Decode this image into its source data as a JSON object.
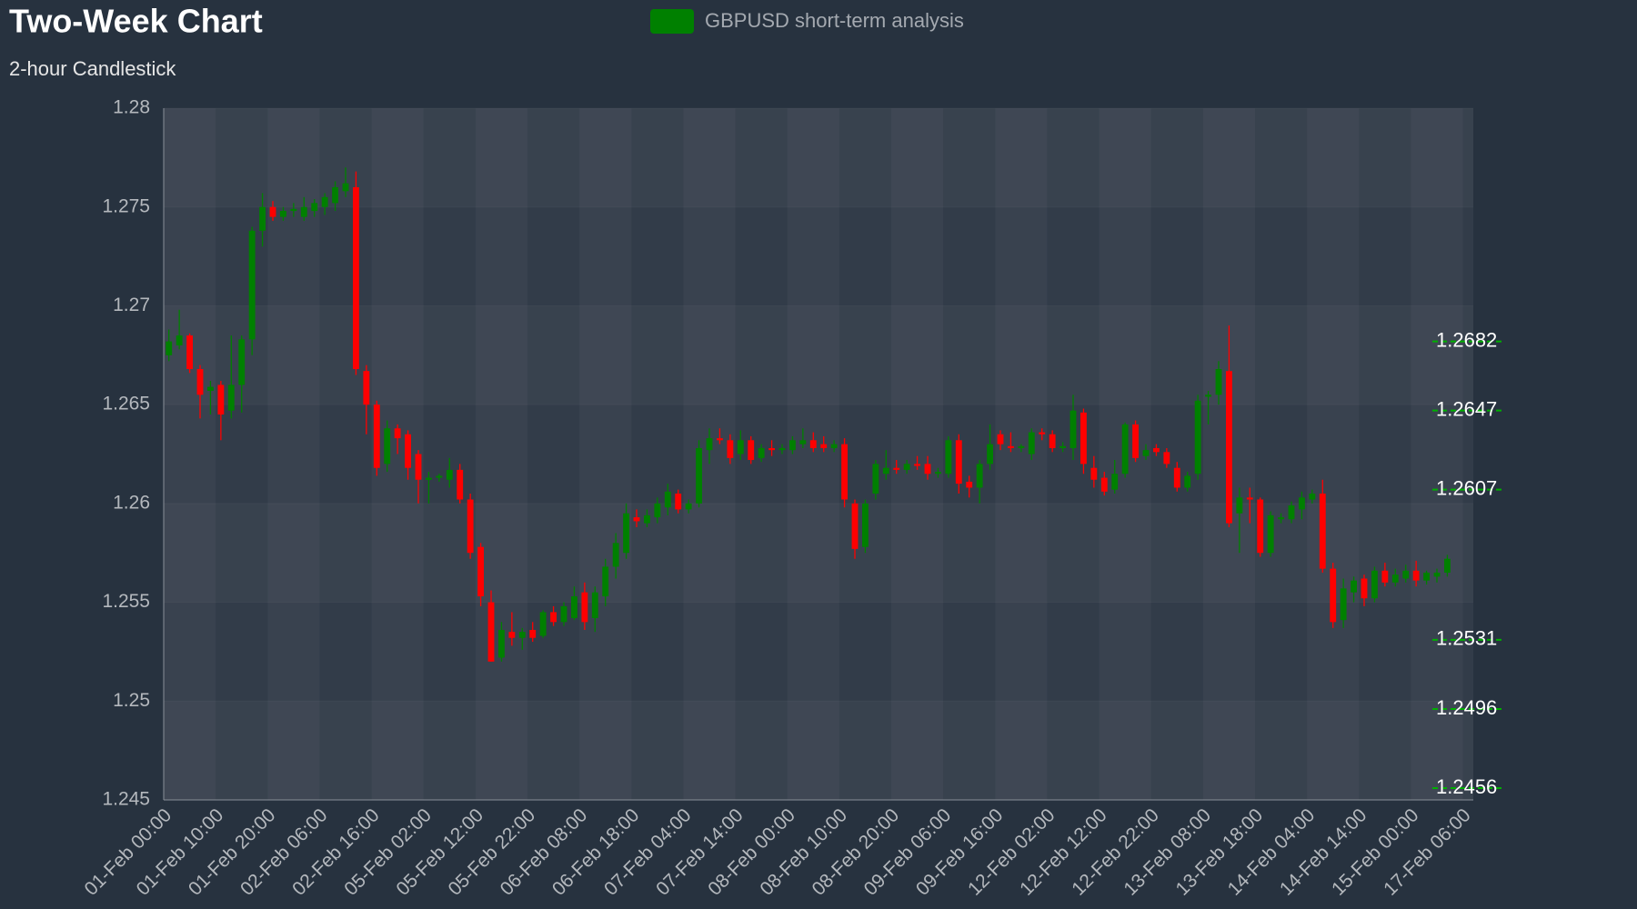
{
  "chart_data": {
    "type": "candlestick",
    "title": "Two-Week Chart",
    "subtitle": "2-hour Candlestick",
    "categories": [
      "01-Feb 00:00",
      null,
      null,
      null,
      null,
      "01-Feb 10:00",
      null,
      null,
      null,
      null,
      "01-Feb 20:00",
      null,
      null,
      null,
      null,
      "02-Feb 06:00",
      null,
      null,
      null,
      null,
      "02-Feb 16:00",
      null,
      null,
      null,
      null,
      "05-Feb 02:00",
      null,
      null,
      null,
      null,
      "05-Feb 12:00",
      null,
      null,
      null,
      null,
      "05-Feb 22:00",
      null,
      null,
      null,
      null,
      "06-Feb 08:00",
      null,
      null,
      null,
      null,
      "06-Feb 18:00",
      null,
      null,
      null,
      null,
      "07-Feb 04:00",
      null,
      null,
      null,
      null,
      "07-Feb 14:00",
      null,
      null,
      null,
      null,
      "08-Feb 00:00",
      null,
      null,
      null,
      null,
      "08-Feb 10:00",
      null,
      null,
      null,
      null,
      "08-Feb 20:00",
      null,
      null,
      null,
      null,
      "09-Feb 06:00",
      null,
      null,
      null,
      null,
      "09-Feb 16:00",
      null,
      null,
      null,
      null,
      "12-Feb 02:00",
      null,
      null,
      null,
      null,
      "12-Feb 12:00",
      null,
      null,
      null,
      null,
      "12-Feb 22:00",
      null,
      null,
      null,
      null,
      "13-Feb 08:00",
      null,
      null,
      null,
      null,
      "13-Feb 18:00",
      null,
      null,
      null,
      null,
      "14-Feb 04:00",
      null,
      null,
      null,
      null,
      "14-Feb 14:00",
      null,
      null,
      null,
      null,
      "15-Feb 00:00",
      null,
      null,
      null,
      null,
      "17-Feb 06:00"
    ],
    "series": [
      {
        "name": "GBPUSD short-term analysis",
        "color": "#008000",
        "down_color": "#ff0000",
        "open": [
          1.2675,
          1.268,
          1.2685,
          1.2668,
          1.2657,
          1.266,
          1.2647,
          1.266,
          1.2683,
          1.2738,
          1.275,
          1.2745,
          1.2748,
          1.2745,
          1.2748,
          1.275,
          1.2752,
          1.2758,
          1.276,
          1.2667,
          1.265,
          1.262,
          1.2638,
          1.2635,
          1.2625,
          1.2612,
          1.2613,
          1.2612,
          1.2617,
          1.2602,
          1.2578,
          1.255,
          1.2522,
          1.2535,
          1.2532,
          1.2536,
          1.2533,
          1.2545,
          1.254,
          1.2542,
          1.2555,
          1.2542,
          1.2553,
          1.2568,
          1.2575,
          1.2593,
          1.259,
          1.2593,
          1.2598,
          1.2605,
          1.2597,
          1.26,
          1.2627,
          1.2633,
          1.2632,
          1.2625,
          1.2632,
          1.2623,
          1.2628,
          1.2627,
          1.2627,
          1.263,
          1.2632,
          1.263,
          1.2628,
          1.263,
          1.26,
          1.2578,
          1.2605,
          1.2615,
          1.2618,
          1.2617,
          1.262,
          1.262,
          1.2615,
          1.2615,
          1.2632,
          1.2611,
          1.2608,
          1.262,
          1.2635,
          1.2629,
          1.2628,
          1.2625,
          1.2636,
          1.2635,
          1.2628,
          1.2628,
          1.2646,
          1.2618,
          1.2613,
          1.2607,
          1.2615,
          1.264,
          1.2624,
          1.2628,
          1.2626,
          1.2618,
          1.2608,
          1.2615,
          1.2654,
          1.2655,
          1.2667,
          1.2595,
          1.2603,
          1.2602,
          1.2575,
          1.2592,
          1.2592,
          1.2597,
          1.2602,
          1.2605,
          1.2567,
          1.2541,
          1.2555,
          1.2562,
          1.2552,
          1.2566,
          1.256,
          1.2562,
          1.2566,
          1.2561,
          1.2563,
          1.2565,
          null,
          null
        ],
        "high": [
          1.2688,
          1.2698,
          1.2686,
          1.267,
          1.2662,
          1.2662,
          1.2685,
          1.2685,
          1.274,
          1.2757,
          1.2753,
          1.275,
          1.2752,
          1.2755,
          1.2754,
          1.2757,
          1.2763,
          1.277,
          1.2768,
          1.267,
          1.2652,
          1.2642,
          1.264,
          1.2637,
          1.2627,
          1.2616,
          1.2615,
          1.2623,
          1.262,
          1.2605,
          1.258,
          1.2556,
          1.254,
          1.2545,
          1.2537,
          1.254,
          1.2546,
          1.2548,
          1.255,
          1.2558,
          1.256,
          1.2558,
          1.2572,
          1.2585,
          1.26,
          1.2597,
          1.2597,
          1.2603,
          1.261,
          1.2607,
          1.2602,
          1.2632,
          1.2638,
          1.2638,
          1.2635,
          1.2637,
          1.2634,
          1.263,
          1.2632,
          1.263,
          1.2634,
          1.2638,
          1.2636,
          1.2634,
          1.2632,
          1.2633,
          1.2602,
          1.2602,
          1.2622,
          1.2627,
          1.2622,
          1.2622,
          1.2624,
          1.2624,
          1.2618,
          1.2634,
          1.2635,
          1.2614,
          1.2622,
          1.264,
          1.2637,
          1.2636,
          1.263,
          1.2638,
          1.2638,
          1.2637,
          1.2631,
          1.2655,
          1.2648,
          1.2624,
          1.2616,
          1.2622,
          1.2641,
          1.2642,
          1.263,
          1.263,
          1.2628,
          1.2621,
          1.2616,
          1.2655,
          1.2657,
          1.2672,
          1.269,
          1.2608,
          1.2608,
          1.2603,
          1.2596,
          1.2595,
          1.2601,
          1.2606,
          1.2607,
          1.2612,
          1.257,
          1.2562,
          1.2563,
          1.2564,
          1.2568,
          1.257,
          1.2567,
          1.2569,
          1.2571,
          1.2566,
          1.2567,
          1.2574,
          null,
          null
        ],
        "low": [
          1.2672,
          1.2678,
          1.2666,
          1.2643,
          1.2645,
          1.2632,
          1.2643,
          1.2646,
          1.2675,
          1.273,
          1.2743,
          1.2743,
          1.2745,
          1.2743,
          1.2745,
          1.2746,
          1.2748,
          1.2755,
          1.2665,
          1.2635,
          1.2614,
          1.2616,
          1.2625,
          1.2612,
          1.26,
          1.26,
          1.2611,
          1.2608,
          1.26,
          1.2572,
          1.2548,
          1.252,
          1.252,
          1.2528,
          1.2526,
          1.253,
          1.2532,
          1.2538,
          1.2538,
          1.2541,
          1.2536,
          1.2535,
          1.2548,
          1.2562,
          1.2572,
          1.2588,
          1.2588,
          1.259,
          1.2594,
          1.2595,
          1.2595,
          1.2598,
          1.262,
          1.263,
          1.262,
          1.2622,
          1.262,
          1.2621,
          1.2624,
          1.2625,
          1.2625,
          1.2628,
          1.2626,
          1.2626,
          1.2626,
          1.2598,
          1.2572,
          1.2575,
          1.2602,
          1.2612,
          1.2615,
          1.2615,
          1.2617,
          1.2612,
          1.2613,
          1.2613,
          1.2605,
          1.2603,
          1.26,
          1.2617,
          1.2627,
          1.2626,
          1.2626,
          1.2622,
          1.2632,
          1.2626,
          1.2626,
          1.2622,
          1.2615,
          1.2608,
          1.2604,
          1.2605,
          1.2613,
          1.2621,
          1.2622,
          1.2624,
          1.2618,
          1.2606,
          1.2606,
          1.2612,
          1.264,
          1.265,
          1.2588,
          1.2575,
          1.259,
          1.2573,
          1.2573,
          1.259,
          1.259,
          1.2592,
          1.26,
          1.2565,
          1.2537,
          1.2537,
          1.255,
          1.2548,
          1.255,
          1.2558,
          1.2558,
          1.256,
          1.2558,
          1.2559,
          1.256,
          1.2563,
          null,
          null
        ],
        "close": [
          1.2682,
          1.2685,
          1.2668,
          1.2655,
          1.2659,
          1.2645,
          1.266,
          1.2683,
          1.2738,
          1.275,
          1.2745,
          1.2748,
          1.2749,
          1.275,
          1.2752,
          1.2755,
          1.276,
          1.2762,
          1.2668,
          1.265,
          1.2618,
          1.2638,
          1.2633,
          1.2618,
          1.2612,
          1.2613,
          1.2614,
          1.2617,
          1.2602,
          1.2575,
          1.2553,
          1.252,
          1.2536,
          1.2532,
          1.2535,
          1.2532,
          1.2545,
          1.254,
          1.2548,
          1.2553,
          1.254,
          1.2555,
          1.2568,
          1.258,
          1.2595,
          1.2591,
          1.2594,
          1.26,
          1.2606,
          1.2597,
          1.26,
          1.2628,
          1.2633,
          1.2632,
          1.2623,
          1.2632,
          1.2622,
          1.2628,
          1.2627,
          1.2628,
          1.2632,
          1.2632,
          1.2628,
          1.2628,
          1.263,
          1.2602,
          1.2577,
          1.26,
          1.262,
          1.2618,
          1.2617,
          1.262,
          1.2619,
          1.2615,
          1.2616,
          1.2632,
          1.261,
          1.2608,
          1.262,
          1.263,
          1.263,
          1.2628,
          1.2629,
          1.2636,
          1.2635,
          1.2628,
          1.2629,
          1.2647,
          1.262,
          1.2612,
          1.2606,
          1.2615,
          1.264,
          1.2623,
          1.2627,
          1.2626,
          1.262,
          1.2608,
          1.2614,
          1.2652,
          1.2655,
          1.2668,
          1.259,
          1.2603,
          1.2602,
          1.2575,
          1.2594,
          1.2593,
          1.2599,
          1.2603,
          1.2605,
          1.2567,
          1.254,
          1.2557,
          1.2561,
          1.2552,
          1.2566,
          1.256,
          1.2564,
          1.2566,
          1.2561,
          1.2565,
          1.2565,
          1.2572,
          null,
          null
        ]
      }
    ],
    "levels": [
      1.2682,
      1.2647,
      1.2607,
      1.2531,
      1.2496,
      1.2456
    ],
    "level_color": "#00b000",
    "ylim": [
      1.245,
      1.28
    ],
    "yticks": [
      1.245,
      1.25,
      1.255,
      1.26,
      1.265,
      1.27,
      1.275,
      1.28
    ],
    "grid": true
  }
}
